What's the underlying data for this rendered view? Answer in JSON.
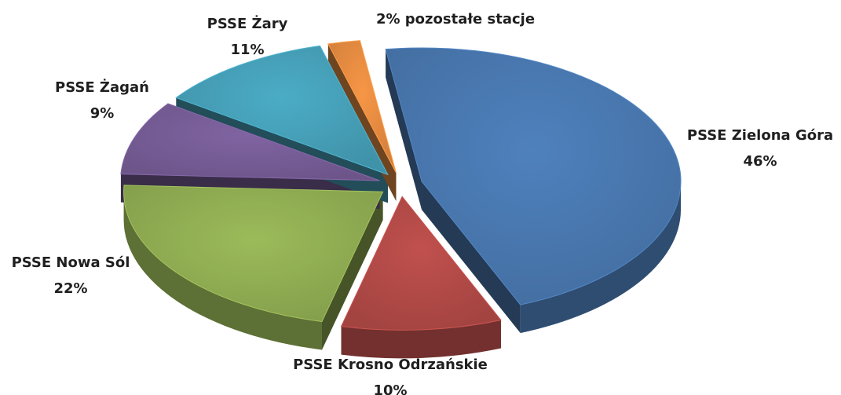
{
  "chart_data": {
    "type": "pie",
    "categories": [
      "PSSE Zielona Góra",
      "PSSE Krosno Odrzańskie",
      "PSSE Nowa Sól",
      "PSSE Żagań",
      "PSSE Żary",
      "pozostałe stacje"
    ],
    "values": [
      46,
      10,
      22,
      9,
      11,
      2
    ],
    "value_labels": [
      "46%",
      "10%",
      "22%",
      "9%",
      "11%",
      "2%"
    ],
    "colors": [
      "#4f81bd",
      "#c0504d",
      "#9bbb59",
      "#8064a2",
      "#4bacc6",
      "#f79646"
    ]
  }
}
